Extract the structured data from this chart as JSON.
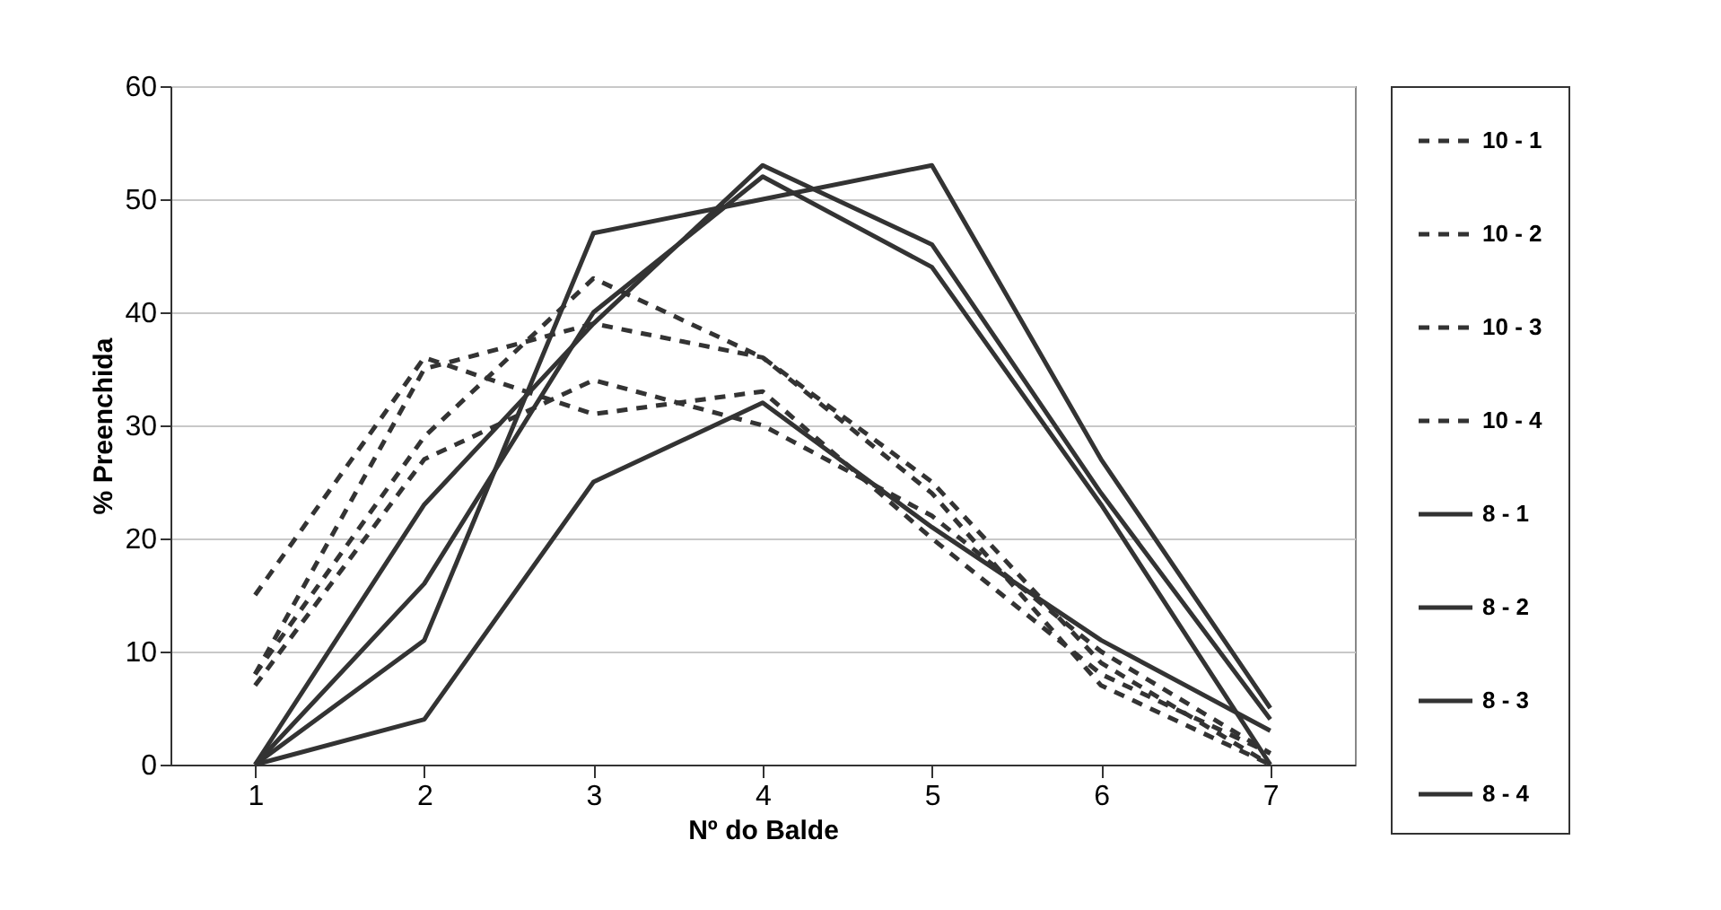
{
  "chart_data": {
    "type": "line",
    "xlabel": "Nº do Balde",
    "ylabel": "% Preenchida",
    "categories": [
      "1",
      "2",
      "3",
      "4",
      "5",
      "6",
      "7"
    ],
    "ylim": [
      0,
      60
    ],
    "yticks": [
      0,
      10,
      20,
      30,
      40,
      50,
      60
    ],
    "grid": "y",
    "legend": "right",
    "marker": "none",
    "series": [
      {
        "name": "10 - 1",
        "color": "#333333",
        "line_style": "dashed",
        "values": [
          15,
          36,
          31,
          33,
          20,
          8,
          1
        ]
      },
      {
        "name": "10 - 2",
        "color": "#333333",
        "line_style": "dashed",
        "values": [
          8,
          35,
          39,
          36,
          24,
          7,
          0
        ]
      },
      {
        "name": "10 - 3",
        "color": "#333333",
        "line_style": "dashed",
        "values": [
          8,
          29,
          43,
          36,
          25,
          9,
          0
        ]
      },
      {
        "name": "10 - 4",
        "color": "#333333",
        "line_style": "dashed",
        "values": [
          7,
          27,
          34,
          30,
          22,
          10,
          1
        ]
      },
      {
        "name": "8 - 1",
        "color": "#333333",
        "line_style": "solid",
        "values": [
          0,
          11,
          47,
          50,
          53,
          27,
          5
        ]
      },
      {
        "name": "8 - 2",
        "color": "#333333",
        "line_style": "solid",
        "values": [
          0,
          23,
          39,
          53,
          46,
          24,
          4
        ]
      },
      {
        "name": "8 - 3",
        "color": "#333333",
        "line_style": "solid",
        "values": [
          0,
          16,
          40,
          52,
          44,
          23,
          0
        ]
      },
      {
        "name": "8 - 4",
        "color": "#333333",
        "line_style": "solid",
        "values": [
          0,
          4,
          25,
          32,
          21,
          11,
          3
        ]
      }
    ]
  }
}
